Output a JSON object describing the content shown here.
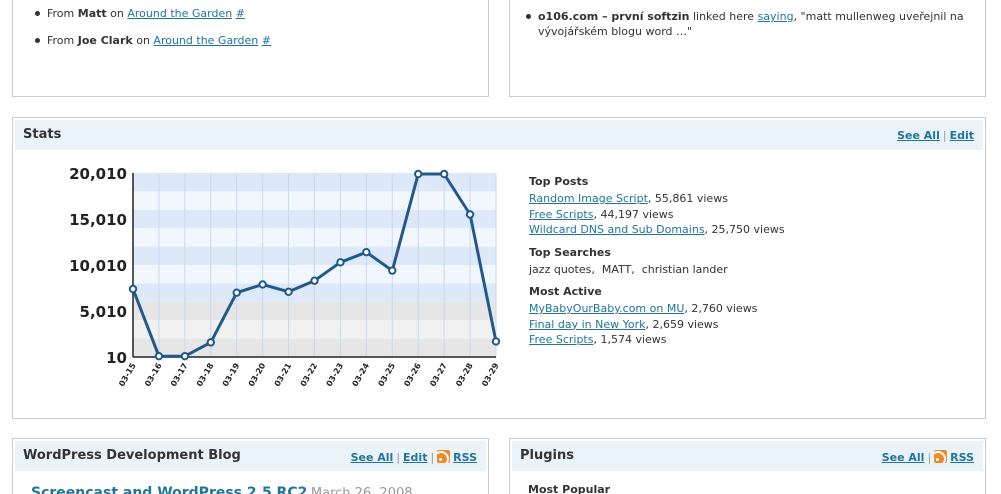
{
  "comments_box": {
    "items": [
      {
        "from_label": "From",
        "author": "Matt",
        "on_label": "on",
        "post": "Around the Garden",
        "hash": "#"
      },
      {
        "from_label": "From",
        "author": "Joe Clark",
        "on_label": "on",
        "post": "Around the Garden",
        "hash": "#"
      }
    ]
  },
  "incoming_links": {
    "items": [
      {
        "source": "o106.com – první softzin",
        "linked_label": "linked here",
        "link": "saying",
        "excerpt_1": ", \"matt mullenweg uveřejnil na",
        "excerpt_2": "vývojářském blogu word …\""
      }
    ]
  },
  "stats": {
    "title": "Stats",
    "see_all": "See All",
    "sep": "|",
    "edit": "Edit",
    "top_posts": {
      "heading": "Top Posts",
      "items": [
        {
          "title": "Random Image Script",
          "views": ", 55,861 views"
        },
        {
          "title": "Free Scripts",
          "views": ", 44,197 views"
        },
        {
          "title": "Wildcard DNS and Sub Domains",
          "views": ", 25,750 views"
        }
      ]
    },
    "top_searches": {
      "heading": "Top Searches",
      "text": "jazz quotes,  MATT,  christian lander"
    },
    "most_active": {
      "heading": "Most Active",
      "items": [
        {
          "title": "MyBabyOurBaby.com on MU",
          "views": ", 2,760 views"
        },
        {
          "title": "Final day in New York",
          "views": ", 2,659 views"
        },
        {
          "title": "Free Scripts",
          "views": ", 1,574 views"
        }
      ]
    }
  },
  "chart_data": {
    "type": "line",
    "title": "",
    "xlabel": "",
    "ylabel": "",
    "x": [
      "03-15",
      "03-16",
      "03-17",
      "03-18",
      "03-19",
      "03-20",
      "03-21",
      "03-22",
      "03-23",
      "03-24",
      "03-25",
      "03-26",
      "03-27",
      "03-28",
      "03-29"
    ],
    "values": [
      7400,
      100,
      100,
      1600,
      7000,
      7900,
      7100,
      8300,
      10300,
      11400,
      9400,
      19900,
      19900,
      15500,
      1700
    ],
    "yticks": [
      10,
      5010,
      10010,
      15010,
      20010
    ],
    "ytick_labels": [
      "10",
      "5,010",
      "10,010",
      "15,010",
      "20,010"
    ],
    "ylim": [
      10,
      20010
    ],
    "line_color": "#21598b",
    "grid": true
  },
  "dev_blog": {
    "title": "WordPress Development Blog",
    "see_all": "See All",
    "sep1": "|",
    "edit": "Edit",
    "sep2": "|",
    "rss": "RSS",
    "first_post": "Screencast and WordPress 2.5 RC2",
    "first_date": "March 26, 2008"
  },
  "plugins": {
    "title": "Plugins",
    "see_all": "See All",
    "sep": "|",
    "rss": "RSS",
    "most_popular": "Most Popular"
  }
}
